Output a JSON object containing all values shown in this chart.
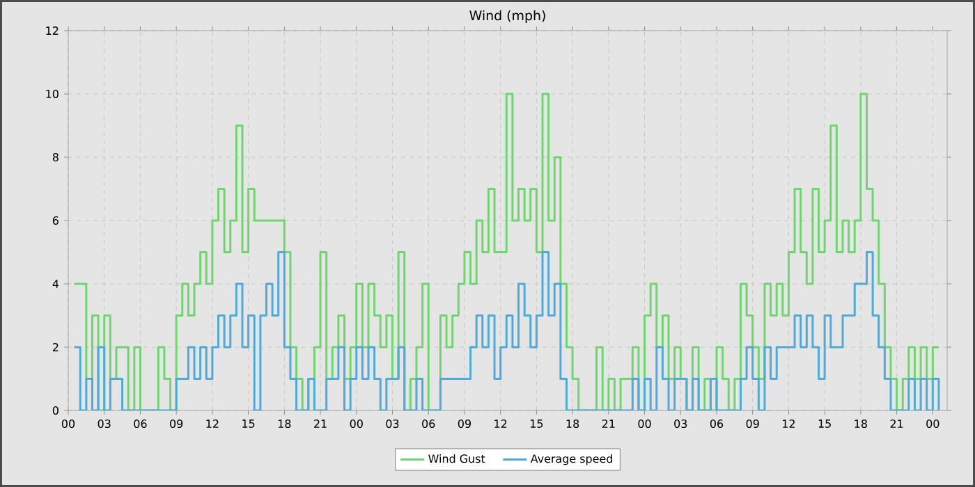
{
  "chart_data": {
    "type": "step",
    "title": "Wind (mph)",
    "x": [
      0.5,
      1,
      1.5,
      2,
      2.5,
      3,
      3.5,
      4,
      4.5,
      5,
      5.5,
      6,
      6.5,
      7,
      7.5,
      8,
      8.5,
      9,
      9.5,
      10,
      10.5,
      11,
      11.5,
      12,
      12.5,
      13,
      13.5,
      14,
      14.5,
      15,
      15.5,
      16,
      16.5,
      17,
      17.5,
      18,
      18.5,
      19,
      19.5,
      20,
      20.5,
      21,
      21.5,
      22,
      22.5,
      23,
      23.5,
      24,
      24.5,
      25,
      25.5,
      26,
      26.5,
      27,
      27.5,
      28,
      28.5,
      29,
      29.5,
      30,
      30.5,
      31,
      31.5,
      32,
      32.5,
      33,
      33.5,
      34,
      34.5,
      35,
      35.5,
      36,
      36.5,
      37,
      37.5,
      38,
      38.5,
      39,
      39.5,
      40,
      40.5,
      41,
      41.5,
      42,
      42.5,
      43,
      43.5,
      44,
      44.5,
      45,
      45.5,
      46,
      46.5,
      47,
      47.5,
      48,
      48.5,
      49,
      49.5,
      50,
      50.5,
      51,
      51.5,
      52,
      52.5,
      53,
      53.5,
      54,
      54.5,
      55,
      55.5,
      56,
      56.5,
      57,
      57.5,
      58,
      58.5,
      59,
      59.5,
      60,
      60.5,
      61,
      61.5,
      62,
      62.5,
      63,
      63.5,
      64,
      64.5,
      65,
      65.5,
      66,
      66.5,
      67,
      67.5,
      68,
      68.5,
      69,
      69.5,
      70,
      70.5,
      71,
      71.5,
      72,
      72.5
    ],
    "series": [
      {
        "name": "Wind Gust",
        "color": "#6fd66f",
        "values": [
          4,
          4,
          1,
          3,
          0,
          3,
          1,
          2,
          2,
          0,
          2,
          0,
          0,
          0,
          2,
          1,
          0,
          3,
          4,
          3,
          4,
          5,
          4,
          6,
          7,
          5,
          6,
          9,
          5,
          7,
          6,
          6,
          6,
          6,
          6,
          5,
          2,
          1,
          0,
          1,
          2,
          5,
          1,
          2,
          3,
          1,
          2,
          4,
          2,
          4,
          3,
          2,
          3,
          1,
          5,
          0,
          1,
          2,
          4,
          0,
          0,
          3,
          2,
          3,
          4,
          5,
          4,
          6,
          5,
          7,
          5,
          5,
          10,
          6,
          7,
          6,
          7,
          5,
          10,
          6,
          8,
          4,
          2,
          1,
          0,
          0,
          0,
          2,
          0,
          1,
          0,
          1,
          1,
          2,
          0,
          3,
          4,
          2,
          3,
          1,
          2,
          1,
          0,
          2,
          0,
          1,
          0,
          2,
          1,
          0,
          1,
          4,
          3,
          2,
          1,
          4,
          3,
          4,
          3,
          5,
          7,
          5,
          4,
          7,
          5,
          6,
          9,
          5,
          6,
          5,
          6,
          10,
          7,
          6,
          4,
          2,
          1,
          0,
          1,
          2,
          1,
          2,
          1,
          2,
          2
        ]
      },
      {
        "name": "Average speed",
        "color": "#4eaad8",
        "values": [
          2,
          0,
          1,
          0,
          2,
          0,
          1,
          1,
          0,
          0,
          0,
          0,
          0,
          0,
          0,
          0,
          0,
          1,
          1,
          2,
          1,
          2,
          1,
          2,
          3,
          2,
          3,
          4,
          2,
          3,
          0,
          3,
          4,
          3,
          5,
          2,
          1,
          0,
          0,
          1,
          0,
          0,
          1,
          1,
          2,
          0,
          1,
          2,
          1,
          2,
          1,
          0,
          1,
          1,
          2,
          0,
          0,
          1,
          0,
          0,
          0,
          1,
          1,
          1,
          1,
          1,
          2,
          3,
          2,
          3,
          1,
          2,
          3,
          2,
          4,
          3,
          2,
          3,
          5,
          3,
          4,
          1,
          0,
          0,
          0,
          0,
          0,
          0,
          0,
          0,
          0,
          0,
          0,
          1,
          0,
          1,
          0,
          2,
          1,
          0,
          1,
          1,
          0,
          1,
          0,
          0,
          1,
          0,
          0,
          0,
          0,
          1,
          2,
          1,
          0,
          2,
          1,
          2,
          2,
          2,
          3,
          2,
          3,
          2,
          1,
          3,
          2,
          2,
          3,
          3,
          4,
          4,
          5,
          3,
          2,
          1,
          0,
          0,
          0,
          1,
          0,
          1,
          0,
          1,
          0
        ]
      }
    ],
    "xlim": [
      0,
      73.2
    ],
    "xticks": [
      {
        "value": 0,
        "label": "00"
      },
      {
        "value": 3,
        "label": "03"
      },
      {
        "value": 6,
        "label": "06"
      },
      {
        "value": 9,
        "label": "09"
      },
      {
        "value": 12,
        "label": "12"
      },
      {
        "value": 15,
        "label": "15"
      },
      {
        "value": 18,
        "label": "18"
      },
      {
        "value": 21,
        "label": "21"
      },
      {
        "value": 24,
        "label": "00"
      },
      {
        "value": 27,
        "label": "03"
      },
      {
        "value": 30,
        "label": "06"
      },
      {
        "value": 33,
        "label": "09"
      },
      {
        "value": 36,
        "label": "12"
      },
      {
        "value": 39,
        "label": "15"
      },
      {
        "value": 42,
        "label": "18"
      },
      {
        "value": 45,
        "label": "21"
      },
      {
        "value": 48,
        "label": "00"
      },
      {
        "value": 51,
        "label": "03"
      },
      {
        "value": 54,
        "label": "06"
      },
      {
        "value": 57,
        "label": "09"
      },
      {
        "value": 60,
        "label": "12"
      },
      {
        "value": 63,
        "label": "15"
      },
      {
        "value": 66,
        "label": "18"
      },
      {
        "value": 69,
        "label": "21"
      },
      {
        "value": 72,
        "label": "00"
      }
    ],
    "ylim": [
      0,
      12
    ],
    "yticks": [
      0,
      2,
      4,
      6,
      8,
      10,
      12
    ],
    "grid": true,
    "legend": "bottom"
  }
}
